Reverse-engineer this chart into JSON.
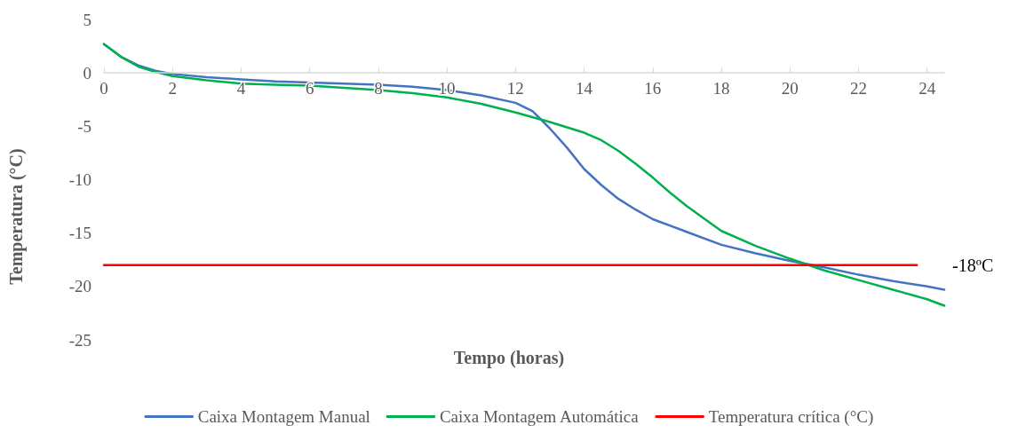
{
  "chart_data": {
    "type": "line",
    "xlabel": "Tempo (horas)",
    "ylabel": "Temperatura (°C)",
    "xlim": [
      0,
      24.5
    ],
    "xticks": [
      0,
      2,
      4,
      6,
      8,
      10,
      12,
      14,
      16,
      18,
      20,
      22,
      24
    ],
    "ylim": [
      -25,
      5
    ],
    "yticks": [
      -25,
      -20,
      -15,
      -10,
      -5,
      0,
      5
    ],
    "grid": false,
    "legend": "bottom",
    "marker": "none",
    "line_style": "solid",
    "series": [
      {
        "name": "Caixa Montagem Manual",
        "color": "#4472c4",
        "x": [
          0,
          0.5,
          1,
          1.5,
          2,
          3,
          4,
          5,
          6,
          7,
          8,
          9,
          10,
          11,
          12,
          12.5,
          13,
          13.5,
          14,
          14.5,
          15,
          15.5,
          16,
          17,
          18,
          19,
          20,
          21,
          22,
          23,
          24,
          24.5
        ],
        "values": [
          2.7,
          1.5,
          0.7,
          0.2,
          -0.1,
          -0.4,
          -0.6,
          -0.8,
          -0.9,
          -1.0,
          -1.1,
          -1.3,
          -1.6,
          -2.1,
          -2.8,
          -3.6,
          -5.2,
          -7.0,
          -9.0,
          -10.5,
          -11.8,
          -12.8,
          -13.7,
          -14.9,
          -16.1,
          -16.9,
          -17.6,
          -18.2,
          -18.9,
          -19.5,
          -20.0,
          -20.3
        ]
      },
      {
        "name": "Caixa Montagem Automática",
        "color": "#00b050",
        "x": [
          0,
          0.5,
          1,
          1.5,
          2,
          3,
          4,
          5,
          6,
          7,
          8,
          9,
          10,
          11,
          12,
          13,
          14,
          14.5,
          15,
          15.5,
          16,
          16.5,
          17,
          18,
          19,
          20,
          21,
          22,
          23,
          24,
          24.5
        ],
        "values": [
          2.7,
          1.5,
          0.6,
          0.1,
          -0.3,
          -0.7,
          -1.0,
          -1.1,
          -1.2,
          -1.4,
          -1.6,
          -1.9,
          -2.3,
          -2.9,
          -3.7,
          -4.6,
          -5.6,
          -6.3,
          -7.3,
          -8.5,
          -9.8,
          -11.2,
          -12.5,
          -14.8,
          -16.2,
          -17.4,
          -18.5,
          -19.4,
          -20.3,
          -21.2,
          -21.8
        ]
      },
      {
        "name": "Temperatura crítica (°C)",
        "color": "#ff0000",
        "x": [
          0,
          23.7
        ],
        "values": [
          -18,
          -18
        ]
      }
    ],
    "annotations": [
      {
        "text": "-18ºC",
        "x": 23.7,
        "y": -18
      }
    ]
  }
}
